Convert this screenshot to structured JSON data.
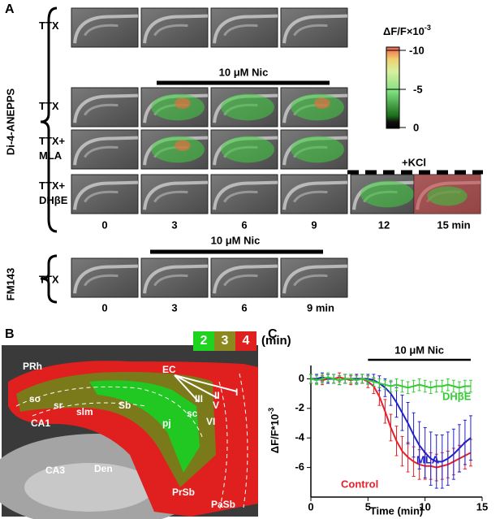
{
  "panel_a": {
    "label": "A",
    "dye": "Di-4-ANEPPS",
    "rows": [
      [
        "TTX"
      ],
      [
        "TTX"
      ],
      [
        "TTX+",
        "MLA"
      ],
      [
        "TTX+",
        "DHβE"
      ]
    ],
    "treatment": "10 μM Nic",
    "kcl": "+KCl",
    "times": [
      "0",
      "3",
      "6",
      "9",
      "12",
      "15 min"
    ],
    "colorbar": {
      "title": "ΔF/F×10",
      "title_exp": "-3",
      "ticks": [
        "-10",
        "-5",
        "0"
      ]
    },
    "fm143": {
      "dye": "FM143",
      "row": "TTX",
      "treatment": "10 μM Nic",
      "times": [
        "0",
        "3",
        "6",
        "9 min"
      ]
    }
  },
  "panel_b": {
    "label": "B",
    "legend": [
      "2",
      "3",
      "4"
    ],
    "legend_unit": "(min)",
    "regions": [
      "PRh",
      "EC",
      "so",
      "sr",
      "slm",
      "CA1",
      "CA3",
      "Den",
      "Sb",
      "pj",
      "sc",
      "VI",
      "V",
      "III",
      "II",
      "I",
      "PrSb",
      "PaSb"
    ]
  },
  "chart_data": {
    "type": "line",
    "panel_label": "C",
    "x_label": "Time (min)",
    "y_label": "ΔF/F*10",
    "y_label_exp": "-3",
    "annotation": {
      "text": "10 μM Nic",
      "x": [
        5,
        14
      ]
    },
    "x": [
      0,
      0.5,
      1,
      1.5,
      2,
      2.5,
      3,
      3.5,
      4,
      4.5,
      5,
      5.5,
      6,
      6.5,
      7,
      7.5,
      8,
      8.5,
      9,
      9.5,
      10,
      10.5,
      11,
      11.5,
      12,
      12.5,
      13,
      13.5,
      14
    ],
    "xlim": [
      0,
      15
    ],
    "xticks": [
      0,
      5,
      10,
      15
    ],
    "ylim": [
      -8,
      0.9
    ],
    "yticks": [
      0,
      -2,
      -4,
      -6
    ],
    "series": [
      {
        "name": "Control",
        "color": "#e8202a",
        "values": [
          0,
          0,
          -0.1,
          0,
          0,
          0.1,
          0,
          -0.1,
          0,
          0,
          -0.2,
          -0.5,
          -1.2,
          -2.2,
          -3.3,
          -4.2,
          -4.9,
          -5.3,
          -5.6,
          -5.8,
          -5.9,
          -5.9,
          -6.0,
          -5.9,
          -5.8,
          -5.6,
          -5.4,
          -5.2,
          -5.0
        ],
        "errors": [
          0.3,
          0.3,
          0.3,
          0.3,
          0.3,
          0.3,
          0.3,
          0.3,
          0.3,
          0.3,
          0.4,
          0.5,
          0.6,
          0.8,
          0.9,
          1.0,
          1.0,
          1.0,
          1.0,
          1.0,
          0.9,
          0.9,
          0.9,
          0.9,
          0.9,
          0.9,
          0.9,
          0.9,
          0.9
        ]
      },
      {
        "name": "MLA",
        "color": "#2222cc",
        "values": [
          0,
          0,
          0.1,
          0,
          0,
          -0.1,
          0,
          0,
          0,
          0,
          0,
          -0.1,
          -0.3,
          -0.6,
          -1.0,
          -1.6,
          -2.3,
          -3.0,
          -3.8,
          -4.5,
          -5.0,
          -5.4,
          -5.6,
          -5.6,
          -5.4,
          -5.1,
          -4.7,
          -4.3,
          -4.0
        ],
        "errors": [
          0.3,
          0.3,
          0.3,
          0.3,
          0.3,
          0.3,
          0.3,
          0.3,
          0.3,
          0.3,
          0.3,
          0.4,
          0.5,
          0.6,
          0.8,
          1.0,
          1.2,
          1.4,
          1.5,
          1.6,
          1.7,
          1.8,
          1.8,
          1.8,
          1.8,
          1.7,
          1.6,
          1.5,
          1.5
        ]
      },
      {
        "name": "DHβE",
        "color": "#33cc33",
        "values": [
          0,
          -0.1,
          0,
          0.1,
          0,
          -0.1,
          0,
          0,
          -0.1,
          0,
          -0.1,
          -0.2,
          -0.3,
          -0.4,
          -0.5,
          -0.4,
          -0.5,
          -0.6,
          -0.5,
          -0.4,
          -0.5,
          -0.6,
          -0.5,
          -0.5,
          -0.4,
          -0.5,
          -0.6,
          -0.5,
          -0.5
        ],
        "errors": [
          0.3,
          0.3,
          0.3,
          0.3,
          0.3,
          0.3,
          0.3,
          0.3,
          0.3,
          0.3,
          0.3,
          0.3,
          0.3,
          0.3,
          0.4,
          0.4,
          0.4,
          0.4,
          0.4,
          0.4,
          0.4,
          0.4,
          0.4,
          0.4,
          0.4,
          0.4,
          0.4,
          0.4,
          0.4
        ]
      }
    ]
  }
}
